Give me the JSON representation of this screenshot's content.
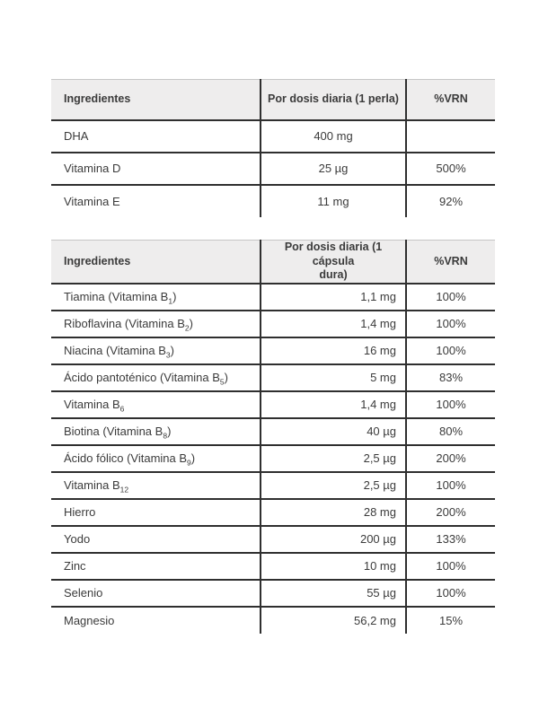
{
  "colors": {
    "page_background": "#ffffff",
    "header_background": "#eeeded",
    "rule_dark": "#2f2f2f",
    "rule_light": "#c6c6c6",
    "text": "#3b3b3b"
  },
  "tables": [
    {
      "id": "perla",
      "headers": [
        "Ingredientes",
        "Por dosis diaria (1 perla)",
        "%VRN"
      ],
      "dose_align": "center",
      "rows": [
        {
          "ingredient": "DHA",
          "dose": "400 mg",
          "vrn": ""
        },
        {
          "ingredient": "Vitamina D",
          "dose": "25 µg",
          "vrn": "500%"
        },
        {
          "ingredient": "Vitamina E",
          "dose": "11 mg",
          "vrn": "92%"
        }
      ]
    },
    {
      "id": "capsula-dura",
      "headers": [
        "Ingredientes",
        "Por dosis diaria (1 cápsula\ndura)",
        "%VRN"
      ],
      "dose_align": "right",
      "rows": [
        {
          "ingredient": "Tiamina (Vitamina B_{1})",
          "dose": "1,1 mg",
          "vrn": "100%"
        },
        {
          "ingredient": "Riboflavina (Vitamina B_{2})",
          "dose": "1,4 mg",
          "vrn": "100%"
        },
        {
          "ingredient": "Niacina (Vitamina B_{3})",
          "dose": "16 mg",
          "vrn": "100%"
        },
        {
          "ingredient": "Ácido pantoténico (Vitamina B_{5})",
          "dose": "5 mg",
          "vrn": "83%"
        },
        {
          "ingredient": "Vitamina B_{6}",
          "dose": "1,4 mg",
          "vrn": "100%"
        },
        {
          "ingredient": "Biotina (Vitamina B_{8})",
          "dose": "40 µg",
          "vrn": "80%"
        },
        {
          "ingredient": "Ácido fólico (Vitamina B_{9})",
          "dose": "2,5 µg",
          "vrn": "200%"
        },
        {
          "ingredient": "Vitamina B_{12}",
          "dose": "2,5 µg",
          "vrn": "100%"
        },
        {
          "ingredient": "Hierro",
          "dose": "28 mg",
          "vrn": "200%"
        },
        {
          "ingredient": "Yodo",
          "dose": "200 µg",
          "vrn": "133%"
        },
        {
          "ingredient": "Zinc",
          "dose": "10 mg",
          "vrn": "100%"
        },
        {
          "ingredient": "Selenio",
          "dose": "55 µg",
          "vrn": "100%"
        },
        {
          "ingredient": "Magnesio",
          "dose": "56,2 mg",
          "vrn": "15%"
        }
      ]
    }
  ]
}
